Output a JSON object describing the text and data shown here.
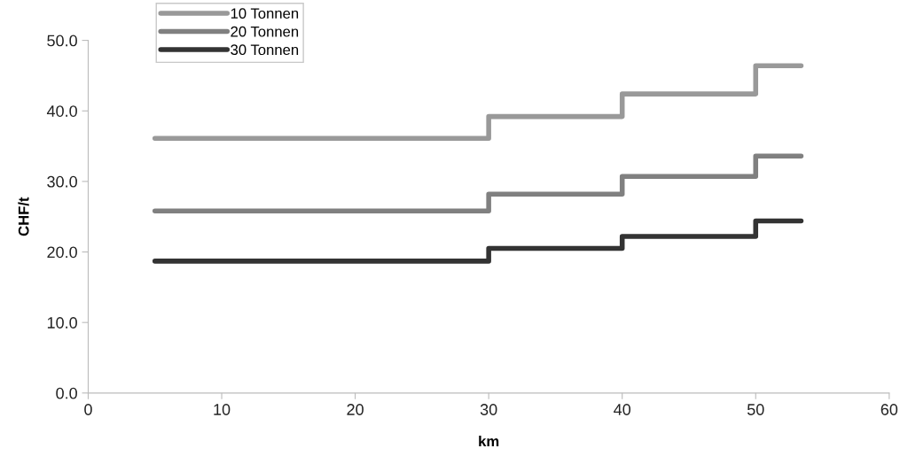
{
  "chart_data": {
    "type": "step",
    "xlabel": "km",
    "ylabel": "CHF/t",
    "x": [
      5,
      30,
      40,
      50,
      53.4
    ],
    "series": [
      {
        "name": "10 Tonnen",
        "color": "#999999",
        "values": [
          36.1,
          39.2,
          42.4,
          46.4,
          46.4
        ]
      },
      {
        "name": "20 Tonnen",
        "color": "#808080",
        "values": [
          25.8,
          28.2,
          30.7,
          33.6,
          33.6
        ]
      },
      {
        "name": "30 Tonnen",
        "color": "#333333",
        "values": [
          18.7,
          20.5,
          22.2,
          24.4,
          24.4
        ]
      }
    ],
    "xlim": [
      0,
      60
    ],
    "xticks": [
      0,
      10,
      20,
      30,
      40,
      50,
      60
    ],
    "ylim": [
      0,
      50
    ],
    "yticks": [
      {
        "value": 0,
        "label": "0.0"
      },
      {
        "value": 10,
        "label": "10.0"
      },
      {
        "value": 20,
        "label": "20.0"
      },
      {
        "value": 30,
        "label": "30.0"
      },
      {
        "value": 40,
        "label": "40.0"
      },
      {
        "value": 50,
        "label": "50.0"
      }
    ],
    "grid": false,
    "legend": "top left",
    "line_style": "solid"
  }
}
